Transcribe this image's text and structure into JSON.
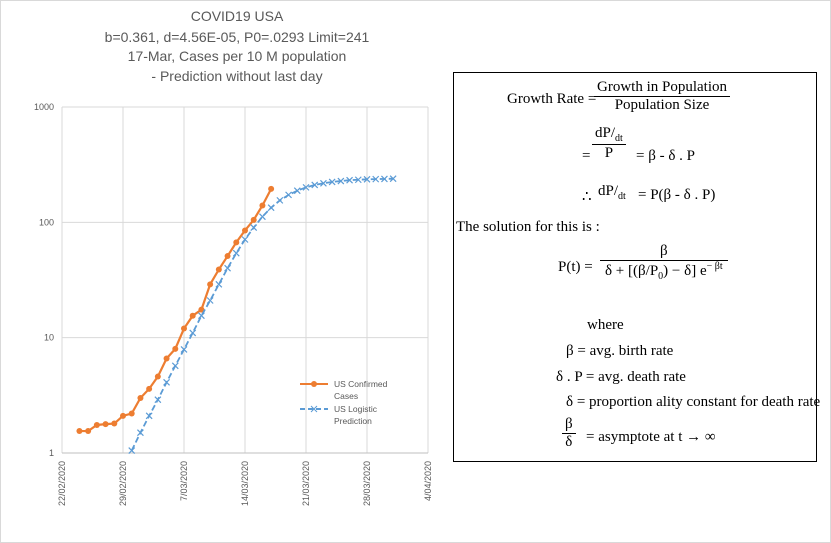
{
  "chart_data": {
    "type": "line",
    "title": [
      "COVID19 USA",
      "b=0.361, d=4.56E-05, P0=.0293 Limit=241",
      "17-Mar, Cases per 10 M population",
      "- Prediction without last day"
    ],
    "log_y": true,
    "grid": true,
    "legend": "lower right",
    "xlim": [
      "22/02/2020",
      "4/04/2020"
    ],
    "xticks": [
      "22/02/2020",
      "29/02/2020",
      "7/03/2020",
      "14/03/2020",
      "21/03/2020",
      "28/03/2020",
      "4/04/2020"
    ],
    "ylim": [
      1,
      1000
    ],
    "yticks": [
      1,
      10,
      100,
      1000
    ],
    "series": [
      {
        "name": "US Confirmed Cases",
        "color": "#ed7d31",
        "marker": "circle",
        "dashed": false,
        "x": [
          "24/02/2020",
          "25/02/2020",
          "26/02/2020",
          "27/02/2020",
          "28/02/2020",
          "29/02/2020",
          "1/03/2020",
          "2/03/2020",
          "3/03/2020",
          "4/03/2020",
          "5/03/2020",
          "6/03/2020",
          "7/03/2020",
          "8/03/2020",
          "9/03/2020",
          "10/03/2020",
          "11/03/2020",
          "12/03/2020",
          "13/03/2020",
          "14/03/2020",
          "15/03/2020",
          "16/03/2020",
          "17/03/2020"
        ],
        "values": [
          1.55,
          1.55,
          1.75,
          1.78,
          1.8,
          2.1,
          2.2,
          3.0,
          3.6,
          4.6,
          6.6,
          8.0,
          12,
          15.5,
          17.5,
          29,
          39,
          51,
          67,
          85,
          105,
          140,
          195
        ]
      },
      {
        "name": "US Logistic Prediction",
        "color": "#5b9bd5",
        "marker": "x",
        "dashed": true,
        "x": [
          "1/03/2020",
          "2/03/2020",
          "3/03/2020",
          "4/03/2020",
          "5/03/2020",
          "6/03/2020",
          "7/03/2020",
          "8/03/2020",
          "9/03/2020",
          "10/03/2020",
          "11/03/2020",
          "12/03/2020",
          "13/03/2020",
          "14/03/2020",
          "15/03/2020",
          "16/03/2020",
          "17/03/2020",
          "18/03/2020",
          "19/03/2020",
          "20/03/2020",
          "21/03/2020",
          "22/03/2020",
          "23/03/2020",
          "24/03/2020",
          "25/03/2020",
          "26/03/2020",
          "27/03/2020",
          "28/03/2020",
          "29/03/2020",
          "30/03/2020",
          "31/03/2020"
        ],
        "values": [
          1.05,
          1.5,
          2.1,
          2.9,
          4.1,
          5.7,
          7.9,
          11,
          15.5,
          21,
          29,
          40,
          54,
          71,
          90,
          112,
          134,
          155,
          173,
          188,
          201,
          211,
          218,
          224,
          228,
          232,
          234,
          236,
          237,
          238,
          239
        ]
      }
    ]
  },
  "equations": {
    "growth_rate": {
      "lhs": "Growth Rate =",
      "num": "Growth  in Population",
      "den": "Population  Size"
    },
    "rate_form": {
      "lhs": "=",
      "num_top": "dP",
      "num_bottom": "dt",
      "den": "P",
      "rhs": "= β - δ . P"
    },
    "ode": {
      "prefix": "∴",
      "lhs_top": "dP",
      "lhs_bottom": "dt",
      "rhs": "= P(β - δ . P)"
    },
    "solution_intro": "The solution for this is :",
    "solution": {
      "lhs": "P(t) =",
      "num": "β",
      "den_start": "δ +",
      "beta": "β",
      "p0": "P",
      "p0_sub": "0",
      "den_mid": "− δ",
      "exp_base": "e",
      "exp": "− βt"
    },
    "where": "where",
    "definitions": [
      "β = avg. birth rate",
      "δ . P = avg. death rate",
      "δ = proportion ality constant  for death rate"
    ],
    "asymptote": {
      "num": "β",
      "den": "δ",
      "rhs": "= asymptote  at t → ∞"
    }
  }
}
